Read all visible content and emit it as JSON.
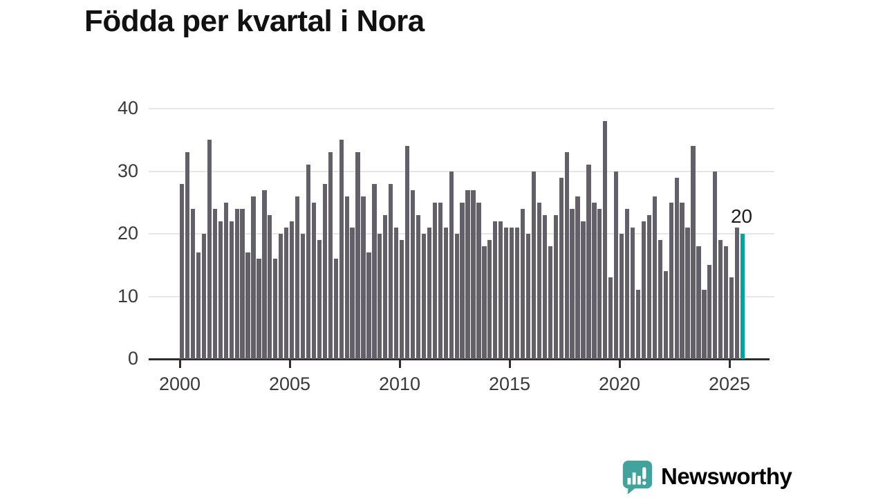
{
  "title": "Födda per kvartal i Nora",
  "colors": {
    "bar": "#636069",
    "highlight": "#00a39e",
    "grid": "#e7e7e7",
    "axis": "#2d2d2d",
    "tick_label": "#3a3a3a",
    "title": "#111111",
    "logo": "#41a39c"
  },
  "logo": {
    "text": "Newsworthy",
    "icon": "speech-bubble-bar-chart-icon"
  },
  "chart_data": {
    "type": "bar",
    "title": "Födda per kvartal i Nora",
    "x_start": "2000 Q1",
    "x_end": "2025 Q3",
    "x_tick_labels": [
      "2000",
      "2005",
      "2010",
      "2015",
      "2020",
      "2025"
    ],
    "y_ticks": [
      0,
      10,
      20,
      30,
      40
    ],
    "ylim": [
      0,
      40
    ],
    "grid": true,
    "legend": false,
    "highlight_last_bar": true,
    "last_value_label": "20",
    "values": [
      28,
      33,
      24,
      17,
      20,
      35,
      24,
      22,
      25,
      22,
      24,
      24,
      17,
      26,
      16,
      27,
      23,
      16,
      20,
      21,
      22,
      26,
      20,
      31,
      25,
      19,
      28,
      33,
      16,
      35,
      26,
      21,
      33,
      26,
      17,
      28,
      20,
      23,
      28,
      21,
      19,
      34,
      27,
      23,
      20,
      21,
      25,
      25,
      21,
      30,
      20,
      25,
      27,
      27,
      25,
      18,
      19,
      22,
      22,
      21,
      21,
      21,
      24,
      20,
      30,
      25,
      23,
      18,
      23,
      29,
      33,
      24,
      26,
      22,
      31,
      25,
      24,
      38,
      13,
      30,
      20,
      24,
      21,
      11,
      22,
      23,
      26,
      19,
      14,
      25,
      29,
      25,
      21,
      34,
      18,
      11,
      15,
      30,
      19,
      18,
      13,
      21,
      20
    ]
  }
}
